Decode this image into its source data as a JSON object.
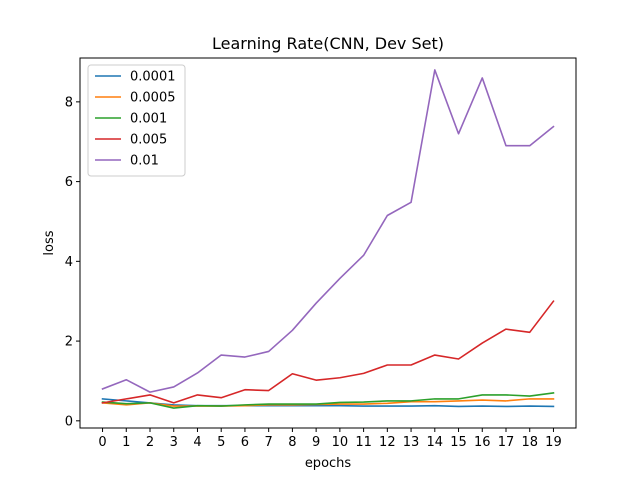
{
  "chart_data": {
    "type": "line",
    "title": "Learning Rate(CNN, Dev Set)",
    "xlabel": "epochs",
    "ylabel": "loss",
    "x": [
      0,
      1,
      2,
      3,
      4,
      5,
      6,
      7,
      8,
      9,
      10,
      11,
      12,
      13,
      14,
      15,
      16,
      17,
      18,
      19
    ],
    "xlim": [
      -0.95,
      19.95
    ],
    "ylim": [
      -0.18,
      9.1
    ],
    "yticks": [
      0,
      2,
      4,
      6,
      8
    ],
    "grid": false,
    "legend_position": "top-left",
    "series": [
      {
        "name": "0.0001",
        "color": "#1f77b4",
        "values": [
          0.55,
          0.5,
          0.45,
          0.4,
          0.38,
          0.38,
          0.38,
          0.38,
          0.38,
          0.38,
          0.38,
          0.37,
          0.37,
          0.37,
          0.38,
          0.36,
          0.37,
          0.36,
          0.37,
          0.36
        ]
      },
      {
        "name": "0.0005",
        "color": "#ff7f0e",
        "values": [
          0.45,
          0.4,
          0.45,
          0.37,
          0.37,
          0.37,
          0.38,
          0.4,
          0.4,
          0.41,
          0.42,
          0.42,
          0.44,
          0.48,
          0.48,
          0.5,
          0.52,
          0.5,
          0.55,
          0.55
        ]
      },
      {
        "name": "0.001",
        "color": "#2ca02c",
        "values": [
          0.47,
          0.43,
          0.45,
          0.32,
          0.38,
          0.37,
          0.4,
          0.42,
          0.42,
          0.42,
          0.46,
          0.47,
          0.5,
          0.5,
          0.55,
          0.55,
          0.65,
          0.65,
          0.62,
          0.7
        ]
      },
      {
        "name": "0.005",
        "color": "#d62728",
        "values": [
          0.45,
          0.55,
          0.65,
          0.45,
          0.65,
          0.58,
          0.78,
          0.76,
          1.18,
          1.02,
          1.08,
          1.19,
          1.4,
          1.4,
          1.65,
          1.55,
          1.95,
          2.3,
          2.22,
          3.0
        ]
      },
      {
        "name": "0.01",
        "color": "#9467bd",
        "values": [
          0.8,
          1.03,
          0.72,
          0.85,
          1.2,
          1.65,
          1.6,
          1.74,
          2.27,
          2.95,
          3.57,
          4.15,
          5.15,
          5.48,
          8.8,
          7.2,
          8.6,
          6.9,
          6.9,
          7.38
        ]
      }
    ]
  }
}
